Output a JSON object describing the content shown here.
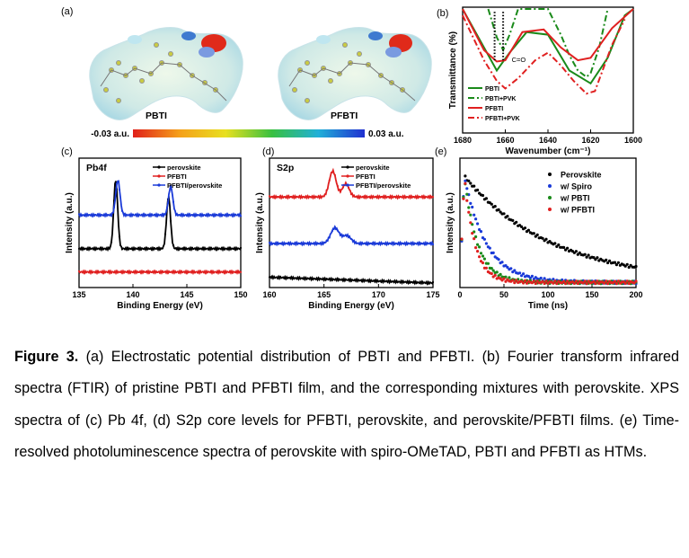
{
  "panel_a": {
    "label": "(a)",
    "mol1": "PBTI",
    "mol2": "PFBTI",
    "scale_min": "-0.03 a.u.",
    "scale_max": "0.03 a.u."
  },
  "chart_data": [
    {
      "panel": "(b)",
      "type": "line",
      "xlabel": "Wavenumber (cm⁻¹)",
      "ylabel": "Transmittance (%)",
      "xlim": [
        1680,
        1600
      ],
      "x_reversed": true,
      "x_ticks": [
        "1680",
        "1660",
        "1640",
        "1620",
        "1600"
      ],
      "annotation": "C=O",
      "series": [
        {
          "name": "PBTI",
          "style": "solid",
          "color": "#1a8a1a",
          "x": [
            1680,
            1670,
            1664,
            1658,
            1650,
            1640,
            1630,
            1620,
            1612,
            1604,
            1600
          ],
          "y": [
            1.0,
            0.7,
            0.52,
            0.66,
            0.82,
            0.8,
            0.52,
            0.42,
            0.62,
            0.95,
            1.0
          ]
        },
        {
          "name": "PBTI+PVK",
          "style": "dashdot",
          "color": "#1a8a1a",
          "x": [
            1668,
            1664,
            1661,
            1658,
            1654,
            1640,
            1634,
            1630,
            1626,
            1622,
            1620,
            1616,
            1612
          ],
          "y": [
            1.0,
            0.78,
            0.68,
            0.8,
            1.0,
            1.0,
            0.8,
            0.64,
            0.52,
            0.47,
            0.5,
            0.7,
            1.0
          ]
        },
        {
          "name": "PFBTI",
          "style": "solid",
          "color": "#e02020",
          "x": [
            1680,
            1670,
            1664,
            1660,
            1652,
            1642,
            1634,
            1626,
            1620,
            1610,
            1600
          ],
          "y": [
            1.0,
            0.68,
            0.59,
            0.6,
            0.82,
            0.84,
            0.7,
            0.6,
            0.62,
            0.85,
            1.0
          ]
        },
        {
          "name": "PFBTI+PVK",
          "style": "dashdot",
          "color": "#e02020",
          "x": [
            1680,
            1670,
            1664,
            1660,
            1654,
            1646,
            1640,
            1634,
            1628,
            1622,
            1618,
            1614,
            1610,
            1604
          ],
          "y": [
            0.95,
            0.6,
            0.44,
            0.38,
            0.46,
            0.6,
            0.66,
            0.56,
            0.44,
            0.34,
            0.36,
            0.54,
            0.72,
            0.92
          ]
        },
        {
          "name": "",
          "style": "dotted",
          "color": "#000000",
          "x": [
            1665,
            1665
          ],
          "y": [
            0.6,
            0.98
          ]
        },
        {
          "name": "",
          "style": "dotted",
          "color": "#000000",
          "x": [
            1661,
            1661
          ],
          "y": [
            0.6,
            0.98
          ]
        }
      ]
    },
    {
      "panel": "(c)",
      "type": "line",
      "title": "Pb4f",
      "xlabel": "Binding Energy (eV)",
      "ylabel": "Intensity (a.u.)",
      "xlim": [
        135,
        150
      ],
      "x_ticks": [
        "135",
        "140",
        "145",
        "150"
      ],
      "series": [
        {
          "name": "perovskite",
          "color": "#000000",
          "y0": 0.3,
          "peaks": [
            [
              138.4,
              0.53,
              0.26
            ],
            [
              143.3,
              0.4,
              0.26
            ]
          ]
        },
        {
          "name": "PFBTI",
          "color": "#e02020",
          "y0": 0.12,
          "peaks": []
        },
        {
          "name": "PFBTI/perovskite",
          "color": "#1a3ad8",
          "y0": 0.56,
          "peaks": [
            [
              138.6,
              0.27,
              0.28
            ],
            [
              143.5,
              0.22,
              0.28
            ]
          ]
        }
      ]
    },
    {
      "panel": "(d)",
      "type": "line",
      "title": "S2p",
      "xlabel": "Binding Energy (eV)",
      "ylabel": "Intensity (a.u.)",
      "xlim": [
        160,
        175
      ],
      "x_ticks": [
        "160",
        "165",
        "170",
        "175"
      ],
      "series": [
        {
          "name": "perovskite",
          "color": "#000000",
          "y0": 0.08,
          "slope": -0.003,
          "peaks": []
        },
        {
          "name": "PFBTI",
          "color": "#e02020",
          "y0": 0.7,
          "peaks": [
            [
              165.8,
              0.2,
              0.45
            ],
            [
              167.0,
              0.1,
              0.45
            ]
          ]
        },
        {
          "name": "PFBTI/perovskite",
          "color": "#1a3ad8",
          "y0": 0.34,
          "peaks": [
            [
              166.0,
              0.12,
              0.55
            ],
            [
              167.1,
              0.06,
              0.55
            ]
          ]
        }
      ]
    },
    {
      "panel": "(e)",
      "type": "scatter",
      "xlabel": "Time (ns)",
      "ylabel": "Intensity (a.u.)",
      "xlim": [
        0,
        200
      ],
      "x_ticks": [
        "0",
        "50",
        "100",
        "150",
        "200"
      ],
      "series": [
        {
          "name": "Perovskite",
          "color": "#000000",
          "tau": 100,
          "y_end_floor": 0.0
        },
        {
          "name": "w/ Spiro",
          "color": "#1a3ad8",
          "tau": 25,
          "y_end_floor": 0.0
        },
        {
          "name": "w/ PBTI",
          "color": "#1a8a1a",
          "tau": 15,
          "y_end_floor": 0.0
        },
        {
          "name": "w/ PFBTI",
          "color": "#e02020",
          "tau": 12,
          "y_end_floor": 0.0
        }
      ]
    }
  ],
  "caption": {
    "label": "Figure 3.",
    "text": " (a) Electrostatic potential distribution of PBTI and PFBTI. (b) Fourier transform infrared spectra (FTIR) of pristine PBTI and PFBTI film, and the corresponding mixtures with perovskite. XPS spectra of (c) Pb 4f, (d) S2p core levels for PFBTI, perovskite, and perovskite/PFBTI films. (e) Time-resolved photoluminescence spectra of perovskite with spiro-OMeTAD, PBTI and PFBTI as HTMs."
  }
}
